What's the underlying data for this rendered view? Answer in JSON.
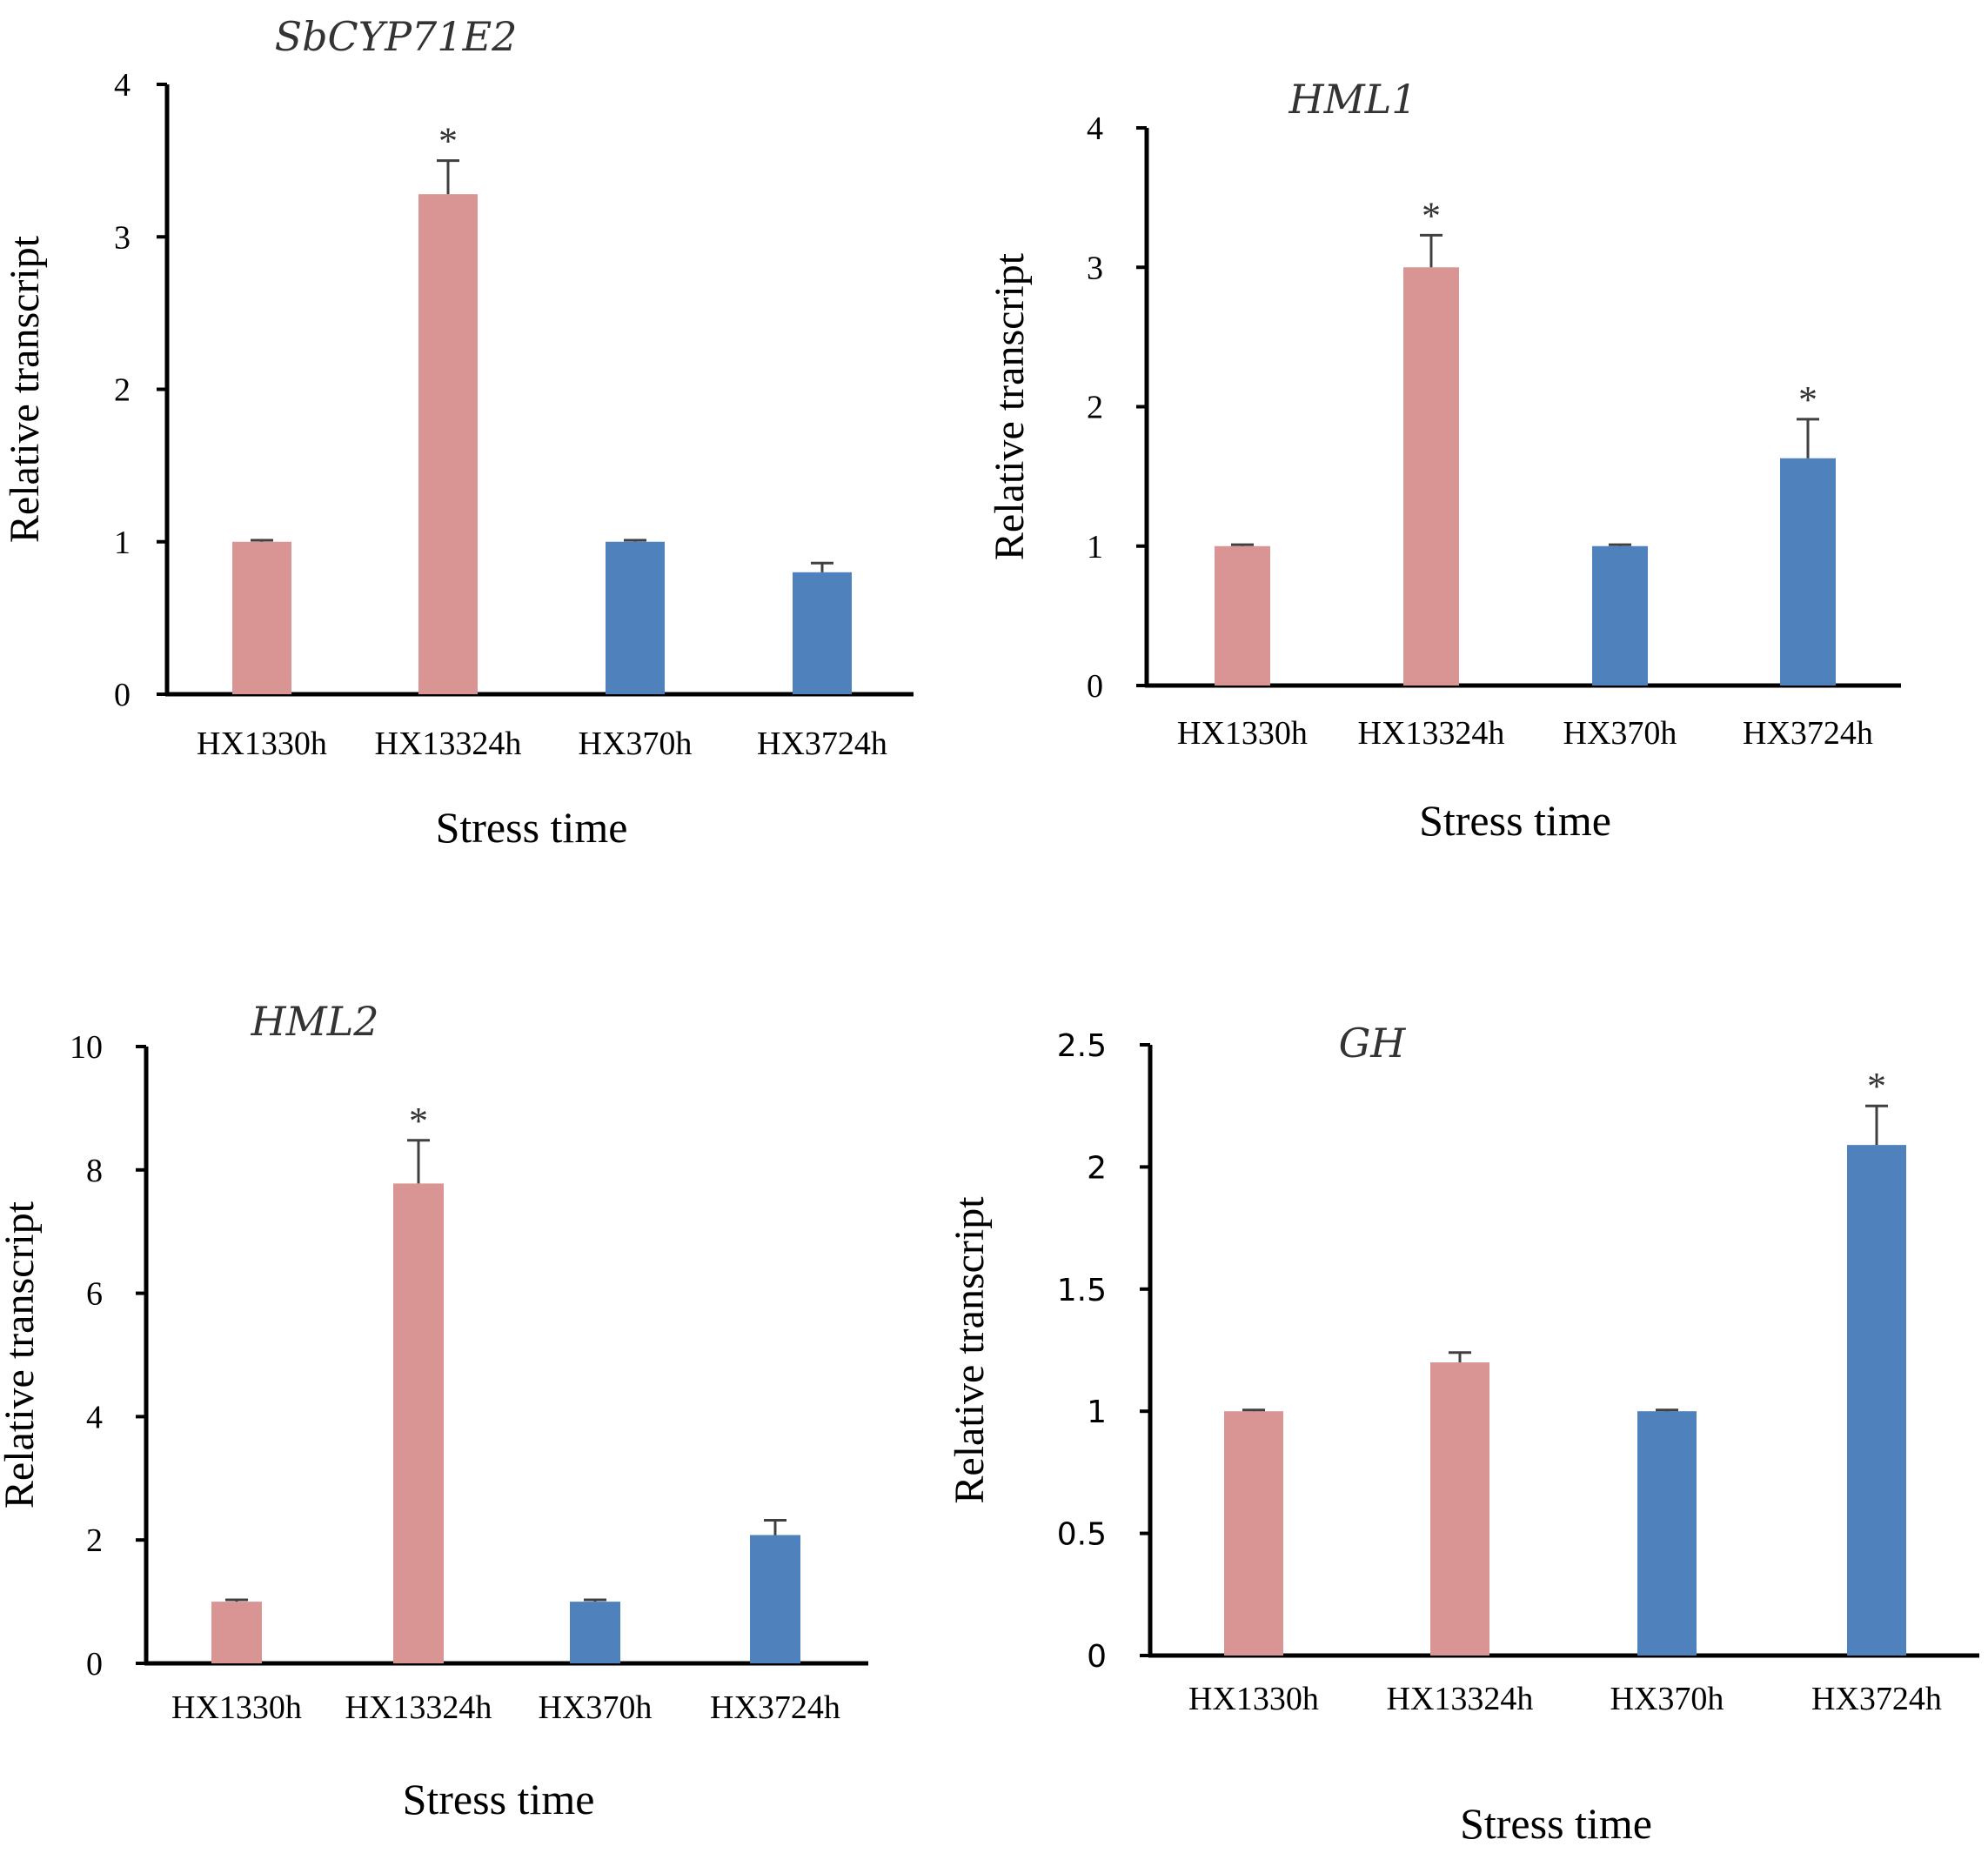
{
  "chart_data": [
    {
      "type": "bar",
      "title": "SbCYP71E2",
      "xlabel": "Stress time",
      "ylabel": "Relative transcript",
      "categories": [
        "HX1330h",
        "HX13324h",
        "HX370h",
        "HX3724h"
      ],
      "values": [
        1.0,
        3.28,
        1.0,
        0.8
      ],
      "errors": [
        0.01,
        0.22,
        0.01,
        0.06
      ],
      "significant": [
        "",
        "*",
        "",
        ""
      ],
      "bar_colors": [
        "#d99594",
        "#d99594",
        "#4f81bd",
        "#4f81bd"
      ],
      "ylim": [
        0,
        4
      ],
      "yticks": [
        "0",
        "1",
        "2",
        "3",
        "4"
      ]
    },
    {
      "type": "bar",
      "title": "HML1",
      "xlabel": "Stress time",
      "ylabel": "Relative transcript",
      "categories": [
        "HX1330h",
        "HX13324h",
        "HX370h",
        "HX3724h"
      ],
      "values": [
        1.0,
        3.0,
        1.0,
        1.63
      ],
      "errors": [
        0.01,
        0.23,
        0.01,
        0.28
      ],
      "significant": [
        "",
        "*",
        "",
        "*"
      ],
      "bar_colors": [
        "#d99594",
        "#d99594",
        "#4f81bd",
        "#4f81bd"
      ],
      "ylim": [
        0,
        4
      ],
      "yticks": [
        "0",
        "1",
        "2",
        "3",
        "4"
      ]
    },
    {
      "type": "bar",
      "title": "HML2",
      "xlabel": "Stress time",
      "ylabel": "Relative transcript",
      "categories": [
        "HX1330h",
        "HX13324h",
        "HX370h",
        "HX3724h"
      ],
      "values": [
        1.0,
        7.78,
        1.0,
        2.08
      ],
      "errors": [
        0.03,
        0.7,
        0.03,
        0.24
      ],
      "significant": [
        "",
        "*",
        "",
        ""
      ],
      "bar_colors": [
        "#d99594",
        "#d99594",
        "#4f81bd",
        "#4f81bd"
      ],
      "ylim": [
        0,
        10
      ],
      "yticks": [
        "0",
        "2",
        "4",
        "6",
        "8",
        "10"
      ]
    },
    {
      "type": "bar",
      "title": "GH",
      "xlabel": "Stress time",
      "ylabel": "Relative transcript",
      "categories": [
        "HX1330h",
        "HX13324h",
        "HX370h",
        "HX3724h"
      ],
      "values": [
        1.0,
        1.2,
        1.0,
        2.09
      ],
      "errors": [
        0.005,
        0.04,
        0.005,
        0.16
      ],
      "significant": [
        "",
        "",
        "",
        "*"
      ],
      "bar_colors": [
        "#d99594",
        "#d99594",
        "#4f81bd",
        "#4f81bd"
      ],
      "ylim": [
        0,
        2.5
      ],
      "yticks": [
        "0",
        "0.5",
        "1",
        "1.5",
        "2",
        "2.5"
      ]
    }
  ]
}
